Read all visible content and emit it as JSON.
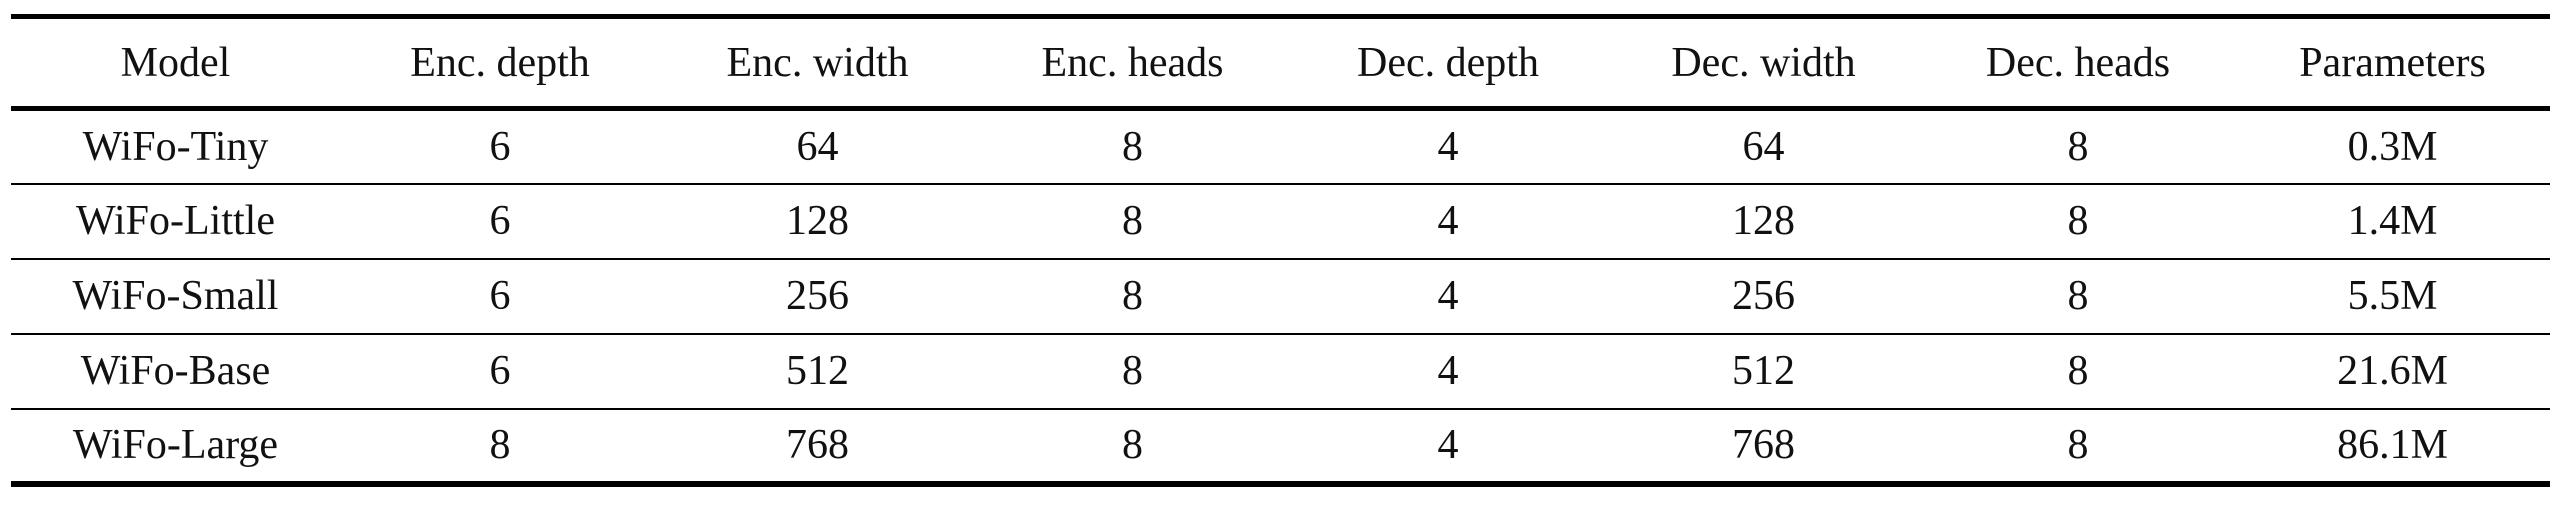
{
  "table": {
    "headers": [
      "Model",
      "Enc. depth",
      "Enc. width",
      "Enc. heads",
      "Dec. depth",
      "Dec. width",
      "Dec. heads",
      "Parameters"
    ],
    "rows": [
      [
        "WiFo-Tiny",
        "6",
        "64",
        "8",
        "4",
        "64",
        "8",
        "0.3M"
      ],
      [
        "WiFo-Little",
        "6",
        "128",
        "8",
        "4",
        "128",
        "8",
        "1.4M"
      ],
      [
        "WiFo-Small",
        "6",
        "256",
        "8",
        "4",
        "256",
        "8",
        "5.5M"
      ],
      [
        "WiFo-Base",
        "6",
        "512",
        "8",
        "4",
        "512",
        "8",
        "21.6M"
      ],
      [
        "WiFo-Large",
        "8",
        "768",
        "8",
        "4",
        "768",
        "8",
        "86.1M"
      ]
    ]
  }
}
